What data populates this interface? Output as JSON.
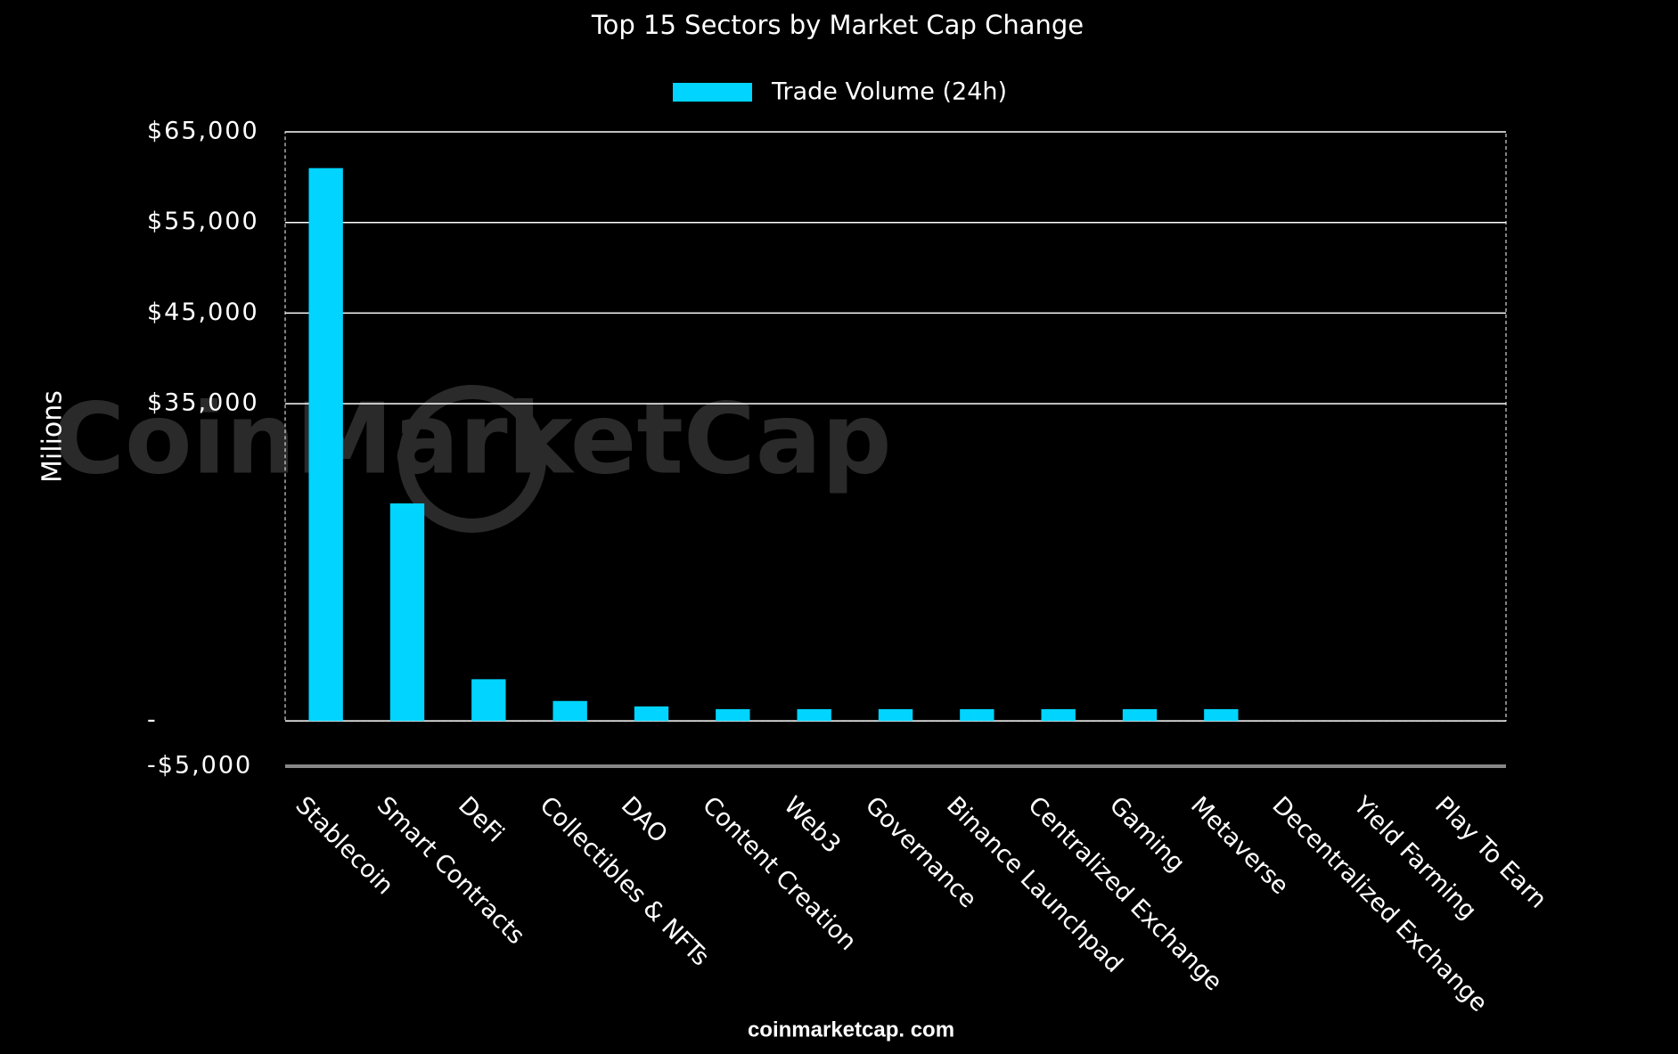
{
  "chart_data": {
    "type": "bar",
    "title": "Top 15 Sectors by Market Cap Change",
    "y_label": "Milions",
    "watermark": "CoinMarketCap",
    "footer": "coinmarketcap. com",
    "categories": [
      "Stablecoin",
      "Smart Contracts",
      "DeFi",
      "Collectibles & NFTs",
      "DAO",
      "Content Creation",
      "Web3",
      "Governance",
      "Binance Launchpad",
      "Centralized Exchange",
      "Gaming",
      "Metaverse",
      "Decentralized Exchange",
      "Yield Farming",
      "Play To Earn"
    ],
    "series": [
      {
        "name": "Trade Volume (24h)",
        "color": "#00d4ff",
        "values": [
          61000,
          24000,
          4600,
          2200,
          1600,
          1300,
          1300,
          1300,
          1300,
          1300,
          1300,
          1300,
          0,
          0,
          0
        ]
      }
    ],
    "ylim": [
      -5000,
      65000
    ],
    "yticks": [
      {
        "value": -5000,
        "label": "-$5,000"
      },
      {
        "value": 0,
        "label": "-"
      },
      {
        "value": 35000,
        "label": "$35,000"
      },
      {
        "value": 45000,
        "label": "$45,000"
      },
      {
        "value": 55000,
        "label": "$55,000"
      },
      {
        "value": 65000,
        "label": "$65,000"
      }
    ],
    "grid": true,
    "legend": "top"
  }
}
